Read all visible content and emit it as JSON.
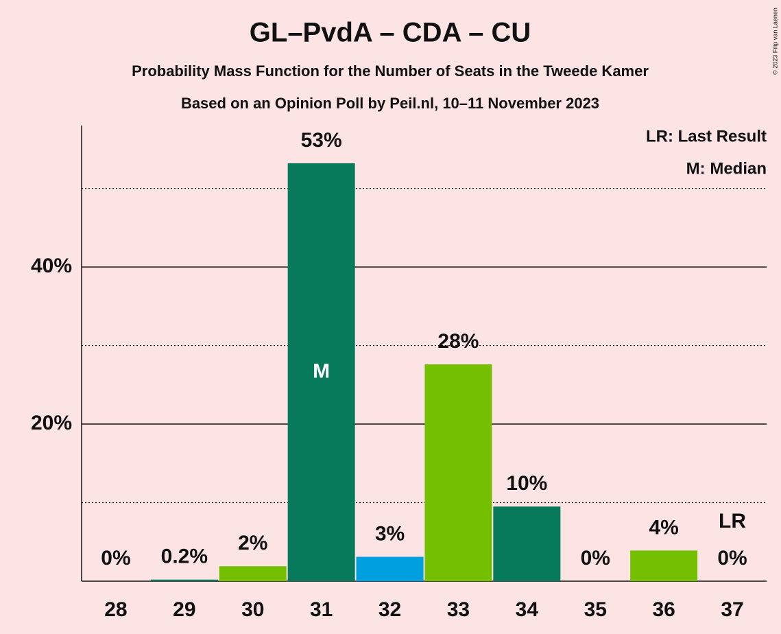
{
  "chart_data": {
    "type": "bar",
    "title": "GL–PvdA – CDA – CU",
    "subtitle": "Probability Mass Function for the Number of Seats in the Tweede Kamer",
    "subtitle2": "Based on an Opinion Poll by Peil.nl, 10–11 November 2023",
    "categories": [
      "28",
      "29",
      "30",
      "31",
      "32",
      "33",
      "34",
      "35",
      "36",
      "37"
    ],
    "values": [
      0,
      0.2,
      1.9,
      53.2,
      3.1,
      27.6,
      9.5,
      0,
      3.9,
      0
    ],
    "value_labels": [
      "0%",
      "0.2%",
      "2%",
      "53%",
      "3%",
      "28%",
      "10%",
      "0%",
      "4%",
      "0%"
    ],
    "colors": [
      "#077a5c",
      "#077a5c",
      "#73bf00",
      "#077a5c",
      "#00a0e0",
      "#73bf00",
      "#077a5c",
      "#077a5c",
      "#73bf00",
      "#077a5c"
    ],
    "ylim": [
      0,
      58
    ],
    "yticks": [
      {
        "value": 20,
        "label": "20%"
      },
      {
        "value": 40,
        "label": "40%"
      }
    ],
    "minor_yticks": [
      10,
      30,
      50
    ],
    "grid": true,
    "median": {
      "label": "M",
      "category": "31"
    },
    "last_result": {
      "label": "LR",
      "category": "37"
    },
    "legend": [
      "LR: Last Result",
      "M: Median"
    ],
    "legend_position": "upper right",
    "copyright": "© 2023 Filip van Laenen"
  }
}
